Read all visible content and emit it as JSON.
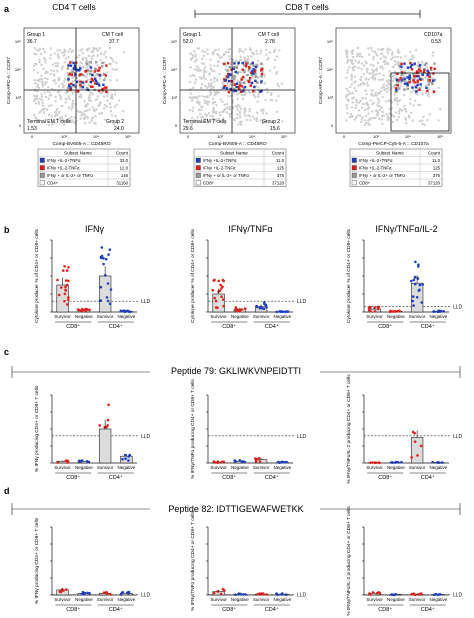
{
  "panels": {
    "a": {
      "letter": "a",
      "titles": [
        "CD4 T cells",
        "CD8 T cells"
      ],
      "flow": [
        {
          "q_tl_name": "Group 1",
          "q_tl_val": "36.7",
          "q_tr_name": "CM T cell",
          "q_tr_val": "37.7",
          "q_bl_name": "Terminal EM T cells",
          "q_bl_val": "1.53",
          "q_br_name": "Group 2",
          "q_br_val": "24.0",
          "yaxis": "Comp-APC-A :: CCR7",
          "xaxis": "Comp-BV605-A :: CD45RO",
          "legend": [
            {
              "name": "IFNγ +IL-2+TNFα",
              "count": "32.0",
              "color": "#1f3fbf"
            },
            {
              "name": "IFNγ +IL-2-TNFα",
              "count": "12.0",
              "color": "#e0201b"
            },
            {
              "name": "IFNγ + or IL-2+ or TNFα",
              "count": "146",
              "color": "#999999"
            },
            {
              "name": "CD4+",
              "count": "31160",
              "color": "#ffffff"
            }
          ]
        },
        {
          "q_tl_name": "Group 1",
          "q_tl_val": "52.0",
          "q_tr_name": "CM T cell",
          "q_tr_val": "2.78",
          "q_bl_name": "Terminal EM T cells",
          "q_bl_val": "29.6",
          "q_br_name": "Group 2",
          "q_br_val": "15.6",
          "yaxis": "Comp-APC-A :: CCR7",
          "xaxis": "Comp-BV605-A :: CD45RO",
          "legend": [
            {
              "name": "IFNγ +IL-2+TNFα",
              "count": "11.0",
              "color": "#1f3fbf"
            },
            {
              "name": "IFNγ +IL-2-TNFα",
              "count": "125",
              "color": "#e0201b"
            },
            {
              "name": "IFNγ + or IL-2+ or TNFα",
              "count": "376",
              "color": "#999999"
            },
            {
              "name": "CD8+",
              "count": "37120",
              "color": "#ffffff"
            }
          ]
        },
        {
          "gate_name": "CD107a",
          "gate_val": "0.53",
          "yaxis": "Comp-APC-A :: CCR7",
          "xaxis": "Comp-PerCP-Cy5-5-A :: CD107a",
          "legend": [
            {
              "name": "IFNγ +IL-2+TNFα",
              "count": "11.0",
              "color": "#1f3fbf"
            },
            {
              "name": "IFNγ +IL-2-TNFα",
              "count": "125",
              "color": "#e0201b"
            },
            {
              "name": "IFNγ + or IL-2+ or TNFα",
              "count": "376",
              "color": "#999999"
            },
            {
              "name": "CD8+",
              "count": "37120",
              "color": "#ffffff"
            }
          ]
        }
      ],
      "legend_header": [
        "Subset Name",
        "Count"
      ]
    },
    "b": {
      "letter": "b",
      "ylabel": "Cytokine producer % of CD4+ or CD8+ cells",
      "lld": "LLD",
      "groups": [
        "CD8⁺",
        "CD4⁺"
      ],
      "ticks": [
        "Survivor",
        "Negative",
        "Survivor",
        "Negative"
      ]
    },
    "c": {
      "letter": "c",
      "peptide": "Peptide 79: GKLIWKVNPEIDTTI",
      "lld": "LLD",
      "groups": [
        "CD8⁺",
        "CD4⁺"
      ],
      "ticks": [
        "Survivor",
        "Negative",
        "Survivor",
        "Negative"
      ]
    },
    "d": {
      "letter": "d",
      "peptide": "Peptide 82: IDTTIGEWAFWETKK",
      "lld": "LLD",
      "groups": [
        "CD8⁺",
        "CD4⁺"
      ],
      "ticks": [
        "Survivor",
        "Negative",
        "Survivor",
        "Negative"
      ]
    }
  },
  "chart_data": [
    {
      "type": "scatter",
      "panel": "b",
      "title": "IFNγ",
      "categories": [
        "CD8+ Survivor",
        "CD8+ Negative",
        "CD4+ Survivor",
        "CD4+ Negative"
      ],
      "series": [
        {
          "values": [
            0.075,
            0.006,
            0.1,
            0.002
          ]
        }
      ],
      "ylim": [
        0,
        0.2
      ],
      "yticks": [
        0,
        0.05,
        0.1,
        0.15,
        0.2
      ],
      "lld_value": 0.03
    },
    {
      "type": "scatter",
      "panel": "b",
      "title": "IFNγ/TNFα",
      "categories": [
        "CD8+ Survivor",
        "CD8+ Negative",
        "CD4+ Survivor",
        "CD4+ Negative"
      ],
      "series": [
        {
          "values": [
            0.05,
            0.008,
            0.015,
            0.001
          ]
        }
      ],
      "ylim": [
        0,
        0.2
      ],
      "yticks": [
        0,
        0.05,
        0.1,
        0.15,
        0.2
      ],
      "lld_value": 0.03
    },
    {
      "type": "scatter",
      "panel": "b",
      "title": "IFNγ/TNFα/IL-2",
      "categories": [
        "CD8+ Survivor",
        "CD8+ Negative",
        "CD4+ Survivor",
        "CD4+ Negative"
      ],
      "series": [
        {
          "values": [
            0.008,
            0.002,
            0.08,
            0.002
          ]
        }
      ],
      "ylim": [
        0,
        0.2
      ],
      "yticks": [
        0,
        0.05,
        0.1,
        0.15,
        0.2
      ],
      "lld_value": 0.015
    },
    {
      "type": "bar",
      "panel": "c",
      "ylabel": "% IFNγ producing CD4+ or CD8+ T cells",
      "categories": [
        "CD8+ Survivor",
        "CD8+ Negative",
        "CD4+ Survivor",
        "CD4+ Negative"
      ],
      "series": [
        {
          "values": [
            0.001,
            0.001,
            0.02,
            0.004
          ]
        }
      ],
      "ylim": [
        0,
        0.04
      ],
      "yticks": [
        0,
        0.01,
        0.02,
        0.03,
        0.04
      ],
      "lld_value": 0.016
    },
    {
      "type": "bar",
      "panel": "c",
      "ylabel": "% IFNγ/TNFα producing CD4+ or CD8+ T cells",
      "categories": [
        "CD8+ Survivor",
        "CD8+ Negative",
        "CD4+ Survivor",
        "CD4+ Negative"
      ],
      "series": [
        {
          "values": [
            0.0005,
            0.001,
            0.002,
            0.0005
          ]
        }
      ],
      "ylim": [
        0,
        0.04
      ],
      "yticks": [
        0,
        0.01,
        0.02,
        0.03,
        0.04
      ],
      "lld_value": 0.016
    },
    {
      "type": "bar",
      "panel": "c",
      "ylabel": "% IFNγ/TNFα/IL-2 producing CD4+ or CD8+ T cells",
      "categories": [
        "CD8+ Survivor",
        "CD8+ Negative",
        "CD4+ Survivor",
        "CD4+ Negative"
      ],
      "series": [
        {
          "values": [
            0.0003,
            0.0003,
            0.015,
            0.0003
          ]
        }
      ],
      "ylim": [
        0,
        0.04
      ],
      "yticks": [
        0,
        0.01,
        0.02,
        0.03,
        0.04
      ],
      "lld_value": 0.016
    },
    {
      "type": "bar",
      "panel": "d",
      "ylabel": "% IFNγ producing CD4+ or CD8+ T cells",
      "categories": [
        "CD8+ Survivor",
        "CD8+ Negative",
        "CD4+ Survivor",
        "CD4+ Negative"
      ],
      "series": [
        {
          "values": [
            0.003,
            0.001,
            0.001,
            0.001
          ]
        }
      ],
      "ylim": [
        0,
        0.04
      ],
      "yticks": [
        0,
        0.01,
        0.02,
        0.03,
        0.04
      ],
      "lld_value": 0.0002
    },
    {
      "type": "bar",
      "panel": "d",
      "ylabel": "% IFNγ/TNFα producing CD4+ or CD8+ T cells",
      "categories": [
        "CD8+ Survivor",
        "CD8+ Negative",
        "CD4+ Survivor",
        "CD4+ Negative"
      ],
      "series": [
        {
          "values": [
            0.002,
            0.0005,
            0.0005,
            0.0005
          ]
        }
      ],
      "ylim": [
        0,
        0.04
      ],
      "yticks": [
        0,
        0.01,
        0.02,
        0.03,
        0.04
      ],
      "lld_value": 0.0002
    },
    {
      "type": "bar",
      "panel": "d",
      "ylabel": "% IFNγ/TNFα/IL-2 producing CD4+ or CD8+ T cells",
      "categories": [
        "CD8+ Survivor",
        "CD8+ Negative",
        "CD4+ Survivor",
        "CD4+ Negative"
      ],
      "series": [
        {
          "values": [
            0.001,
            0.0003,
            0.0005,
            0.0003
          ]
        }
      ],
      "ylim": [
        0,
        0.04
      ],
      "yticks": [
        0,
        0.01,
        0.02,
        0.03,
        0.04
      ],
      "lld_value": 0.0002
    }
  ]
}
